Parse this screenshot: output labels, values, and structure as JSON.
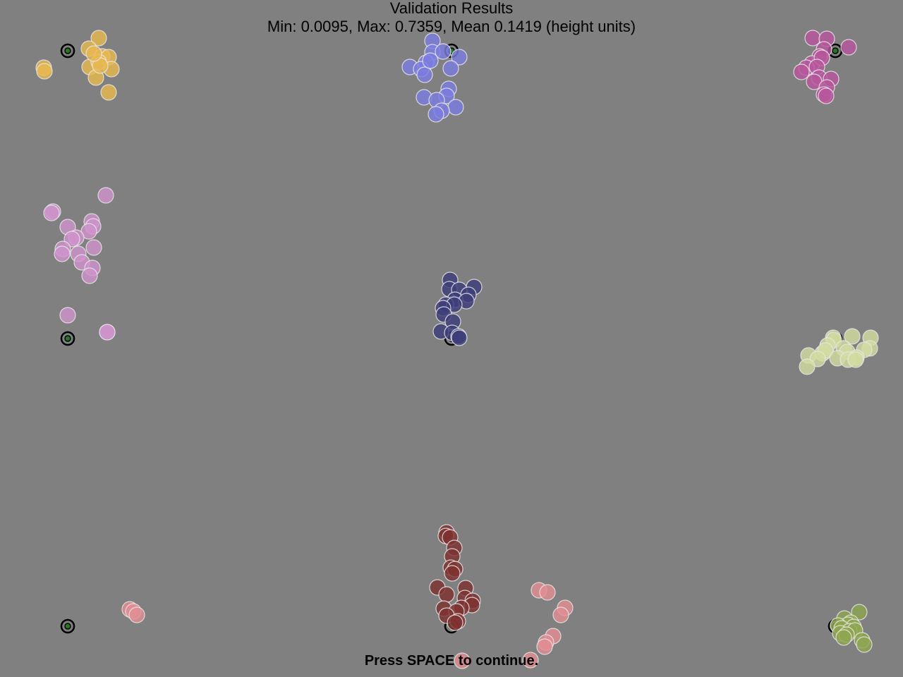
{
  "header": {
    "title": "Validation Results",
    "summary": "Min: 0.0095, Max: 0.7359, Mean 0.1419 (height units)"
  },
  "footer": {
    "prompt": "Press SPACE to continue."
  },
  "colors": {
    "background": "#808080",
    "target_ring": "#000000",
    "target_center": "#1f7a1f",
    "sample_outline": "#e6e6e6"
  },
  "chart_data": {
    "type": "scatter",
    "targets": [
      {
        "id": "top-left",
        "point": [
          96,
          72
        ]
      },
      {
        "id": "top-center",
        "point": [
          640,
          72
        ]
      },
      {
        "id": "top-right",
        "point": [
          1184,
          72
        ]
      },
      {
        "id": "middle-left",
        "point": [
          96,
          480
        ]
      },
      {
        "id": "middle-center",
        "point": [
          640,
          480
        ]
      },
      {
        "id": "middle-right",
        "point": [
          1184,
          480
        ]
      },
      {
        "id": "bottom-left",
        "point": [
          96,
          888
        ]
      },
      {
        "id": "bottom-center",
        "point": [
          640,
          888
        ]
      },
      {
        "id": "bottom-right",
        "point": [
          1184,
          888
        ]
      }
    ],
    "series": [
      {
        "color": "#e8b84f",
        "points": [
          [
            62,
            96
          ],
          [
            63,
            101
          ],
          [
            140,
            54
          ],
          [
            126,
            69
          ],
          [
            145,
            80
          ],
          [
            154,
            81
          ],
          [
            127,
            95
          ],
          [
            140,
            88
          ],
          [
            158,
            98
          ],
          [
            136,
            110
          ],
          [
            154,
            131
          ],
          [
            142,
            93
          ],
          [
            133,
            76
          ]
        ]
      },
      {
        "color": "#7b7de0",
        "points": [
          [
            613,
            58
          ],
          [
            613,
            74
          ],
          [
            628,
            73
          ],
          [
            651,
            81
          ],
          [
            604,
            89
          ],
          [
            581,
            95
          ],
          [
            597,
            98
          ],
          [
            602,
            106
          ],
          [
            639,
            97
          ],
          [
            610,
            86
          ],
          [
            636,
            126
          ],
          [
            633,
            136
          ],
          [
            601,
            138
          ],
          [
            619,
            142
          ],
          [
            646,
            152
          ],
          [
            626,
            157
          ],
          [
            618,
            162
          ]
        ]
      },
      {
        "color": "#b8569e",
        "points": [
          [
            1152,
            54
          ],
          [
            1172,
            55
          ],
          [
            1203,
            67
          ],
          [
            1168,
            70
          ],
          [
            1162,
            80
          ],
          [
            1151,
            90
          ],
          [
            1165,
            82
          ],
          [
            1143,
            96
          ],
          [
            1158,
            95
          ],
          [
            1136,
            102
          ],
          [
            1161,
            110
          ],
          [
            1178,
            112
          ],
          [
            1154,
            116
          ],
          [
            1172,
            124
          ],
          [
            1168,
            134
          ],
          [
            1171,
            136
          ]
        ]
      },
      {
        "color": "#cf92cc",
        "points": [
          [
            150,
            277
          ],
          [
            75,
            300
          ],
          [
            73,
            302
          ],
          [
            130,
            314
          ],
          [
            96,
            322
          ],
          [
            132,
            321
          ],
          [
            126,
            328
          ],
          [
            108,
            337
          ],
          [
            102,
            339
          ],
          [
            89,
            353
          ],
          [
            133,
            351
          ],
          [
            88,
            360
          ],
          [
            111,
            360
          ],
          [
            116,
            372
          ],
          [
            131,
            380
          ],
          [
            127,
            391
          ],
          [
            96,
            447
          ],
          [
            152,
            471
          ],
          [
            152,
            471
          ]
        ]
      },
      {
        "color": "#3d3d7a",
        "points": [
          [
            638,
            397
          ],
          [
            637,
            410
          ],
          [
            651,
            411
          ],
          [
            672,
            407
          ],
          [
            664,
            418
          ],
          [
            645,
            425
          ],
          [
            661,
            427
          ],
          [
            632,
            432
          ],
          [
            644,
            432
          ],
          [
            628,
            437
          ],
          [
            629,
            446
          ],
          [
            642,
            456
          ],
          [
            625,
            470
          ],
          [
            641,
            472
          ],
          [
            650,
            477
          ],
          [
            651,
            479
          ]
        ]
      },
      {
        "color": "#d3dca0",
        "points": [
          [
            1181,
            479
          ],
          [
            1182,
            482
          ],
          [
            1208,
            477
          ],
          [
            1234,
            479
          ],
          [
            1173,
            490
          ],
          [
            1196,
            494
          ],
          [
            1233,
            494
          ],
          [
            1146,
            504
          ],
          [
            1166,
            501
          ],
          [
            1170,
            497
          ],
          [
            1201,
            499
          ],
          [
            1225,
            496
          ],
          [
            1159,
            509
          ],
          [
            1187,
            508
          ],
          [
            1214,
            507
          ],
          [
            1202,
            510
          ],
          [
            1213,
            510
          ],
          [
            1144,
            520
          ]
        ]
      },
      {
        "color": "#7e3230",
        "points": [
          [
            633,
            755
          ],
          [
            632,
            760
          ],
          [
            638,
            762
          ],
          [
            644,
            777
          ],
          [
            641,
            789
          ],
          [
            639,
            805
          ],
          [
            645,
            807
          ],
          [
            641,
            813
          ],
          [
            620,
            833
          ],
          [
            660,
            834
          ],
          [
            633,
            843
          ],
          [
            659,
            848
          ],
          [
            670,
            852
          ],
          [
            669,
            858
          ],
          [
            654,
            862
          ],
          [
            629,
            863
          ],
          [
            647,
            867
          ],
          [
            633,
            873
          ],
          [
            649,
            881
          ],
          [
            645,
            883
          ]
        ]
      },
      {
        "color": "#e28e93",
        "points": [
          [
            184,
            864
          ],
          [
            189,
            867
          ],
          [
            194,
            872
          ],
          [
            764,
            837
          ],
          [
            776,
            840
          ],
          [
            801,
            862
          ],
          [
            795,
            872
          ],
          [
            784,
            902
          ],
          [
            774,
            911
          ],
          [
            772,
            917
          ],
          [
            752,
            936
          ],
          [
            655,
            937
          ]
        ]
      },
      {
        "color": "#8fa64f",
        "points": [
          [
            1218,
            868
          ],
          [
            1197,
            877
          ],
          [
            1206,
            883
          ],
          [
            1202,
            886
          ],
          [
            1188,
            887
          ],
          [
            1210,
            889
          ],
          [
            1193,
            891
          ],
          [
            1204,
            895
          ],
          [
            1212,
            894
          ],
          [
            1191,
            898
          ],
          [
            1200,
            900
          ],
          [
            1222,
            908
          ],
          [
            1196,
            904
          ],
          [
            1225,
            914
          ]
        ]
      }
    ]
  }
}
